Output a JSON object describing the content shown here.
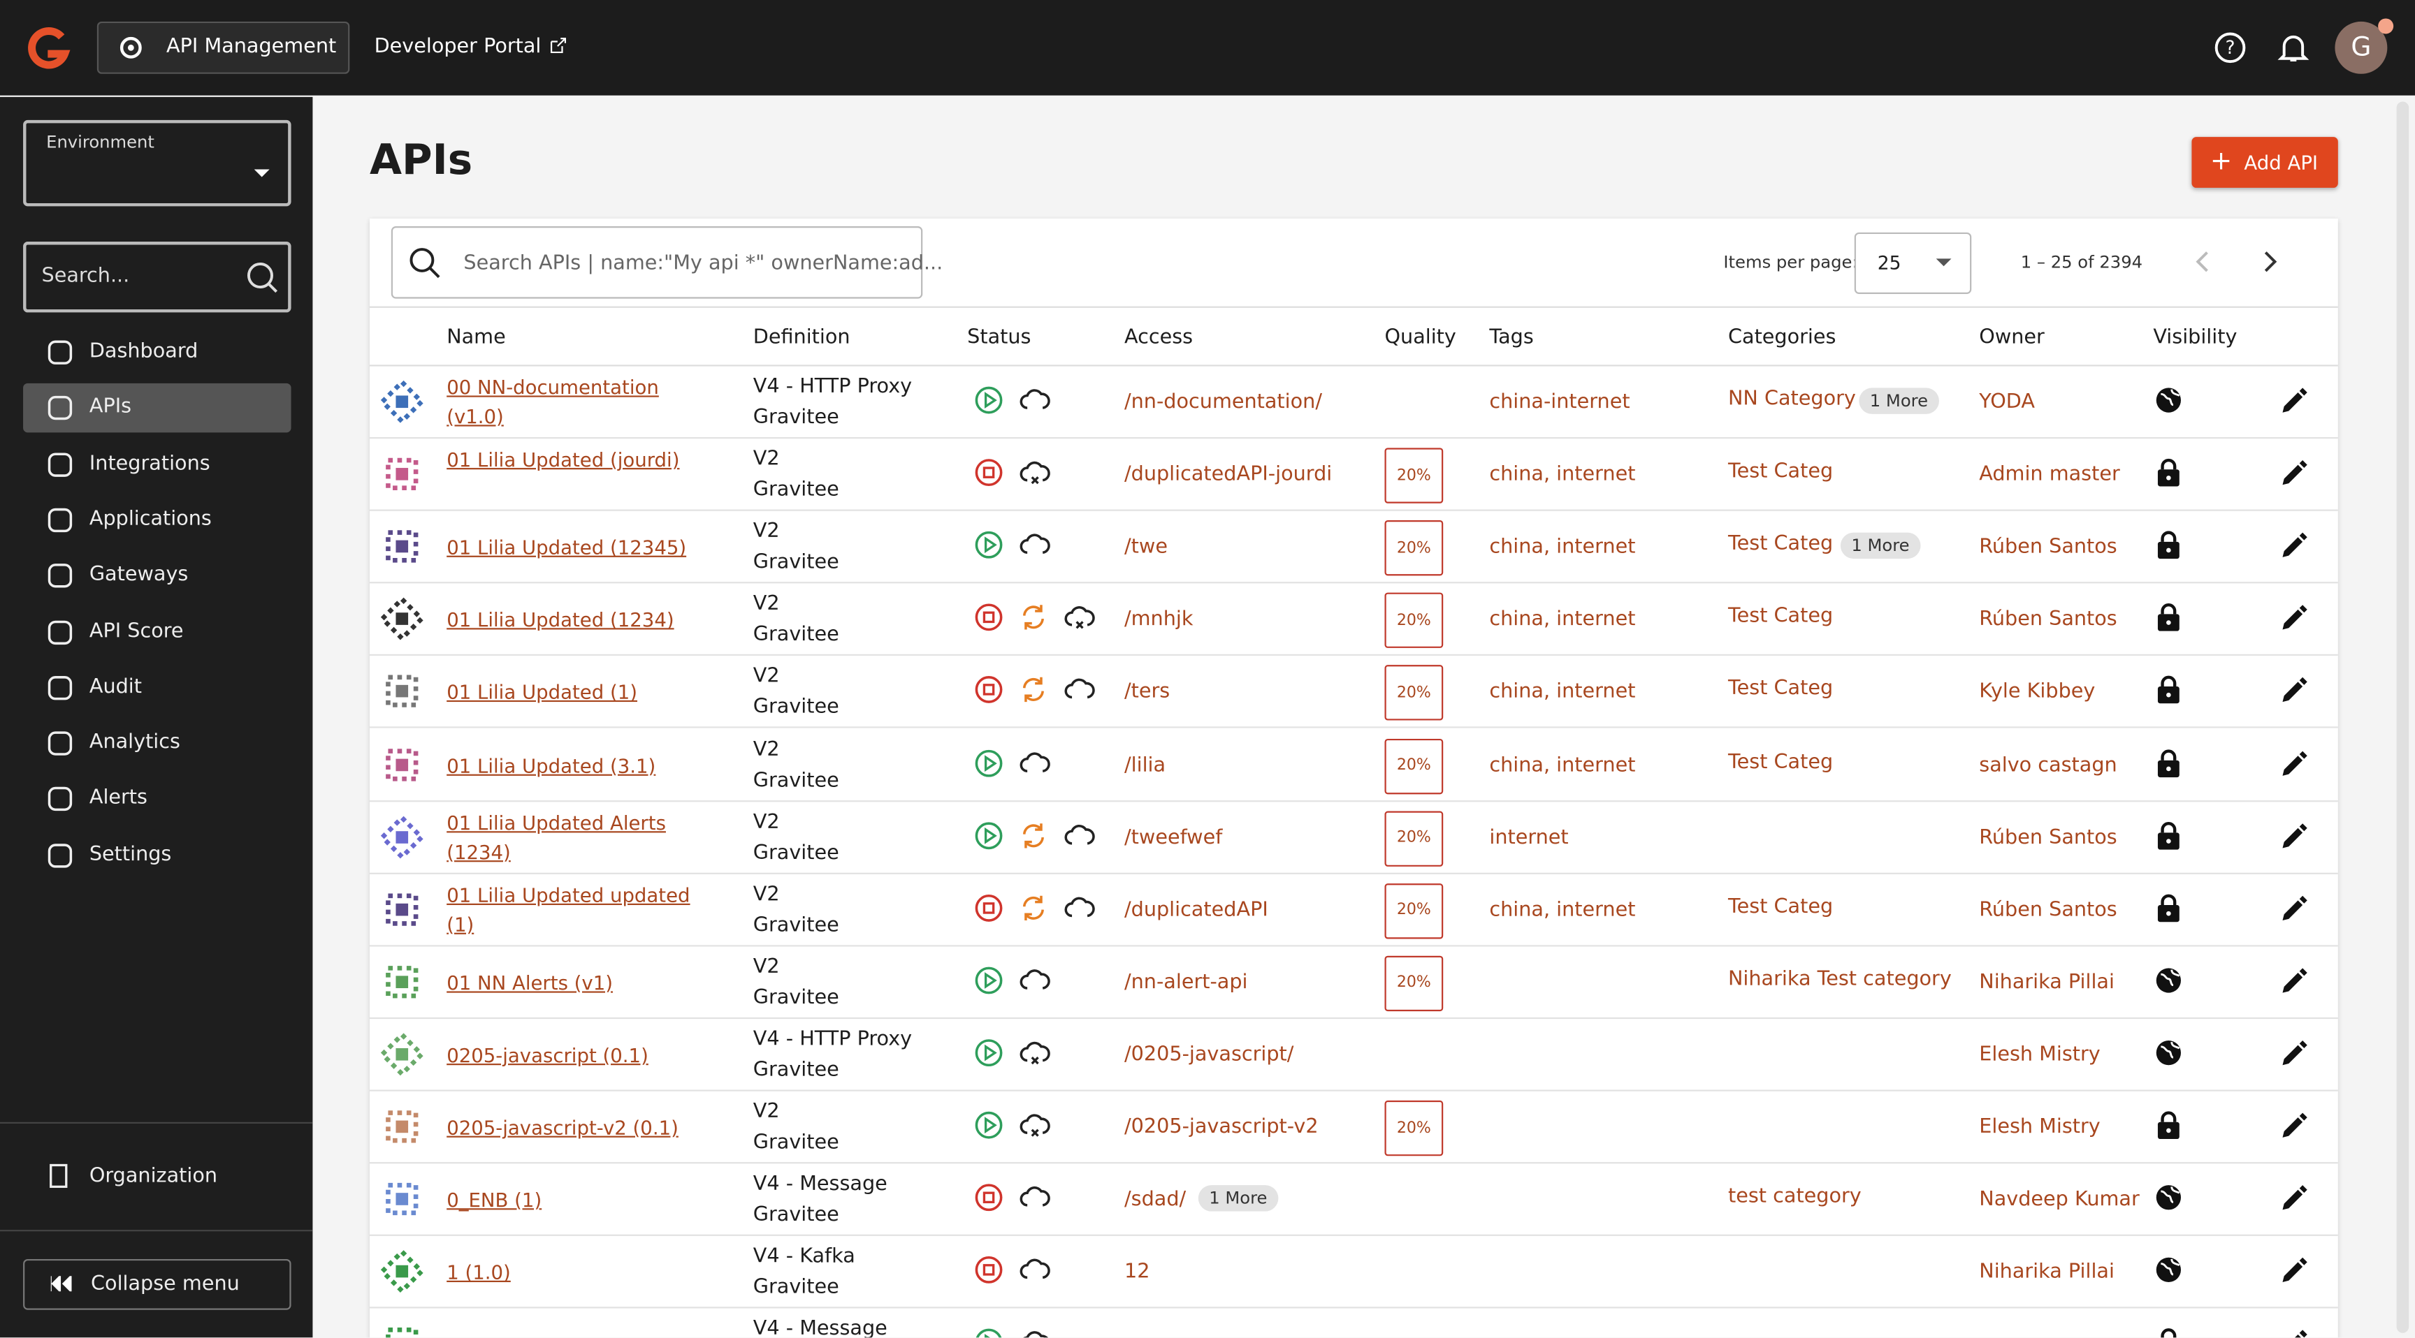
{
  "header": {
    "nav_primary": "API Management",
    "nav_secondary": "Developer Portal",
    "avatar": "G"
  },
  "sidebar": {
    "environment_label": "Environment",
    "search_placeholder": "Search...",
    "menu": [
      "Dashboard",
      "APIs",
      "Integrations",
      "Applications",
      "Gateways",
      "API Score",
      "Audit",
      "Analytics",
      "Alerts",
      "Settings"
    ],
    "organization": "Organization",
    "collapse": "Collapse menu"
  },
  "main": {
    "title": "APIs",
    "add_button": "Add API",
    "search_placeholder": "Search APIs | name:\"My api *\" ownerName:ad...",
    "items_per_page_label": "Items per page:",
    "items_per_page": "25",
    "pagination": "1 – 25 of 2394"
  },
  "table": {
    "columns": [
      "Name",
      "Definition",
      "Status",
      "Access",
      "Quality",
      "Tags",
      "Categories",
      "Owner",
      "Visibility"
    ],
    "rows": [
      {
        "name": "00 NN-documentation (v1.0)",
        "definition": "V4 - HTTP Proxy",
        "source": "Gravitee",
        "access": "/nn-documentation/",
        "tags": "china-internet",
        "categories": "NN Category",
        "categories_more": "1 More",
        "owner": "YODA"
      },
      {
        "name": "01 Lilia Updated (jourdi)",
        "definition": "V2",
        "source": "Gravitee",
        "access": "/duplicatedAPI-jourdi",
        "quality": "20%",
        "tags": "china, internet",
        "categories": "Test Categ",
        "owner": "Admin master"
      },
      {
        "name": "01 Lilia Updated (12345)",
        "definition": "V2",
        "source": "Gravitee",
        "access": "/twe",
        "quality": "20%",
        "tags": "china, internet",
        "categories": "Test Categ",
        "categories_more": "1 More",
        "owner": "Rúben Santos"
      },
      {
        "name": "01 Lilia Updated (1234)",
        "definition": "V2",
        "source": "Gravitee",
        "access": "/mnhjk",
        "quality": "20%",
        "tags": "china, internet",
        "categories": "Test Categ",
        "owner": "Rúben Santos"
      },
      {
        "name": "01 Lilia Updated (1)",
        "definition": "V2",
        "source": "Gravitee",
        "access": "/ters",
        "quality": "20%",
        "tags": "china, internet",
        "categories": "Test Categ",
        "owner": "Kyle Kibbey"
      },
      {
        "name": "01 Lilia Updated (3.1)",
        "definition": "V2",
        "source": "Gravitee",
        "access": "/lilia",
        "quality": "20%",
        "tags": "china, internet",
        "categories": "Test Categ",
        "owner": "salvo castagn"
      },
      {
        "name": "01 Lilia Updated Alerts (1234)",
        "definition": "V2",
        "source": "Gravitee",
        "access": "/tweefwef",
        "quality": "20%",
        "tags": "internet",
        "owner": "Rúben Santos"
      },
      {
        "name": "01 Lilia Updated updated (1)",
        "definition": "V2",
        "source": "Gravitee",
        "access": "/duplicatedAPI",
        "quality": "20%",
        "tags": "china, internet",
        "categories": "Test Categ",
        "owner": "Rúben Santos"
      },
      {
        "name": "01 NN Alerts (v1)",
        "definition": "V2",
        "source": "Gravitee",
        "access": "/nn-alert-api",
        "quality": "20%",
        "categories": "Niharika Test category",
        "owner": "Niharika Pillai"
      },
      {
        "name": "0205-javascript (0.1)",
        "definition": "V4 - HTTP Proxy",
        "source": "Gravitee",
        "access": "/0205-javascript/",
        "owner": "Elesh Mistry"
      },
      {
        "name": "0205-javascript-v2 (0.1)",
        "definition": "V2",
        "source": "Gravitee",
        "access": "/0205-javascript-v2",
        "quality": "20%",
        "owner": "Elesh Mistry"
      },
      {
        "name": "0_ENB (1)",
        "definition": "V4 - Message",
        "source": "Gravitee",
        "access": "/sdad/",
        "access_more": "1 More",
        "categories": "test category",
        "owner": "Navdeep Kumar"
      },
      {
        "name": "1 (1.0)",
        "definition": "V4 - Kafka",
        "source": "Gravitee",
        "access": "12",
        "owner": "Niharika Pillai"
      },
      {
        "definition": "V4 - Message"
      }
    ]
  }
}
